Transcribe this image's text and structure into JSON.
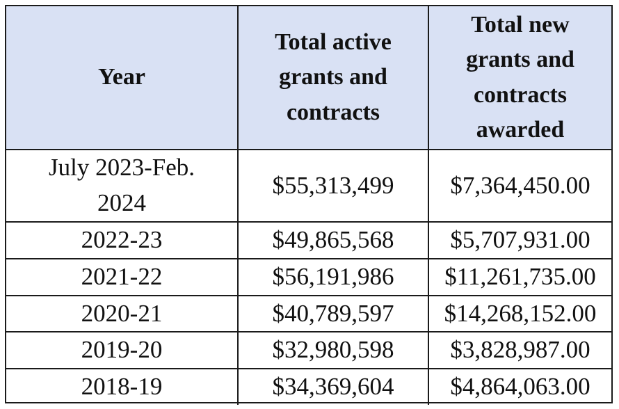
{
  "table": {
    "headers": {
      "year": "Year",
      "active_lines": [
        "Total active",
        "grants and",
        "contracts"
      ],
      "new_lines": [
        "Total new",
        "grants and",
        "contracts",
        "awarded"
      ]
    },
    "rows": [
      {
        "year_lines": [
          "July 2023-Feb.",
          "2024"
        ],
        "active": "$55,313,499",
        "new": "$7,364,450.00"
      },
      {
        "year_lines": [
          "2022-23"
        ],
        "active": "$49,865,568",
        "new": "$5,707,931.00"
      },
      {
        "year_lines": [
          "2021-22"
        ],
        "active": "$56,191,986",
        "new": "$11,261,735.00"
      },
      {
        "year_lines": [
          "2020-21"
        ],
        "active": "$40,789,597",
        "new": "$14,268,152.00"
      },
      {
        "year_lines": [
          "2019-20"
        ],
        "active": "$32,980,598",
        "new": "$3,828,987.00"
      },
      {
        "year_lines": [
          "2018-19"
        ],
        "active": "$34,369,604",
        "new": "$4,864,063.00"
      }
    ],
    "colors": {
      "header_bg": "#d9e1f4",
      "border": "#1a1a1a",
      "text": "#111111"
    }
  }
}
